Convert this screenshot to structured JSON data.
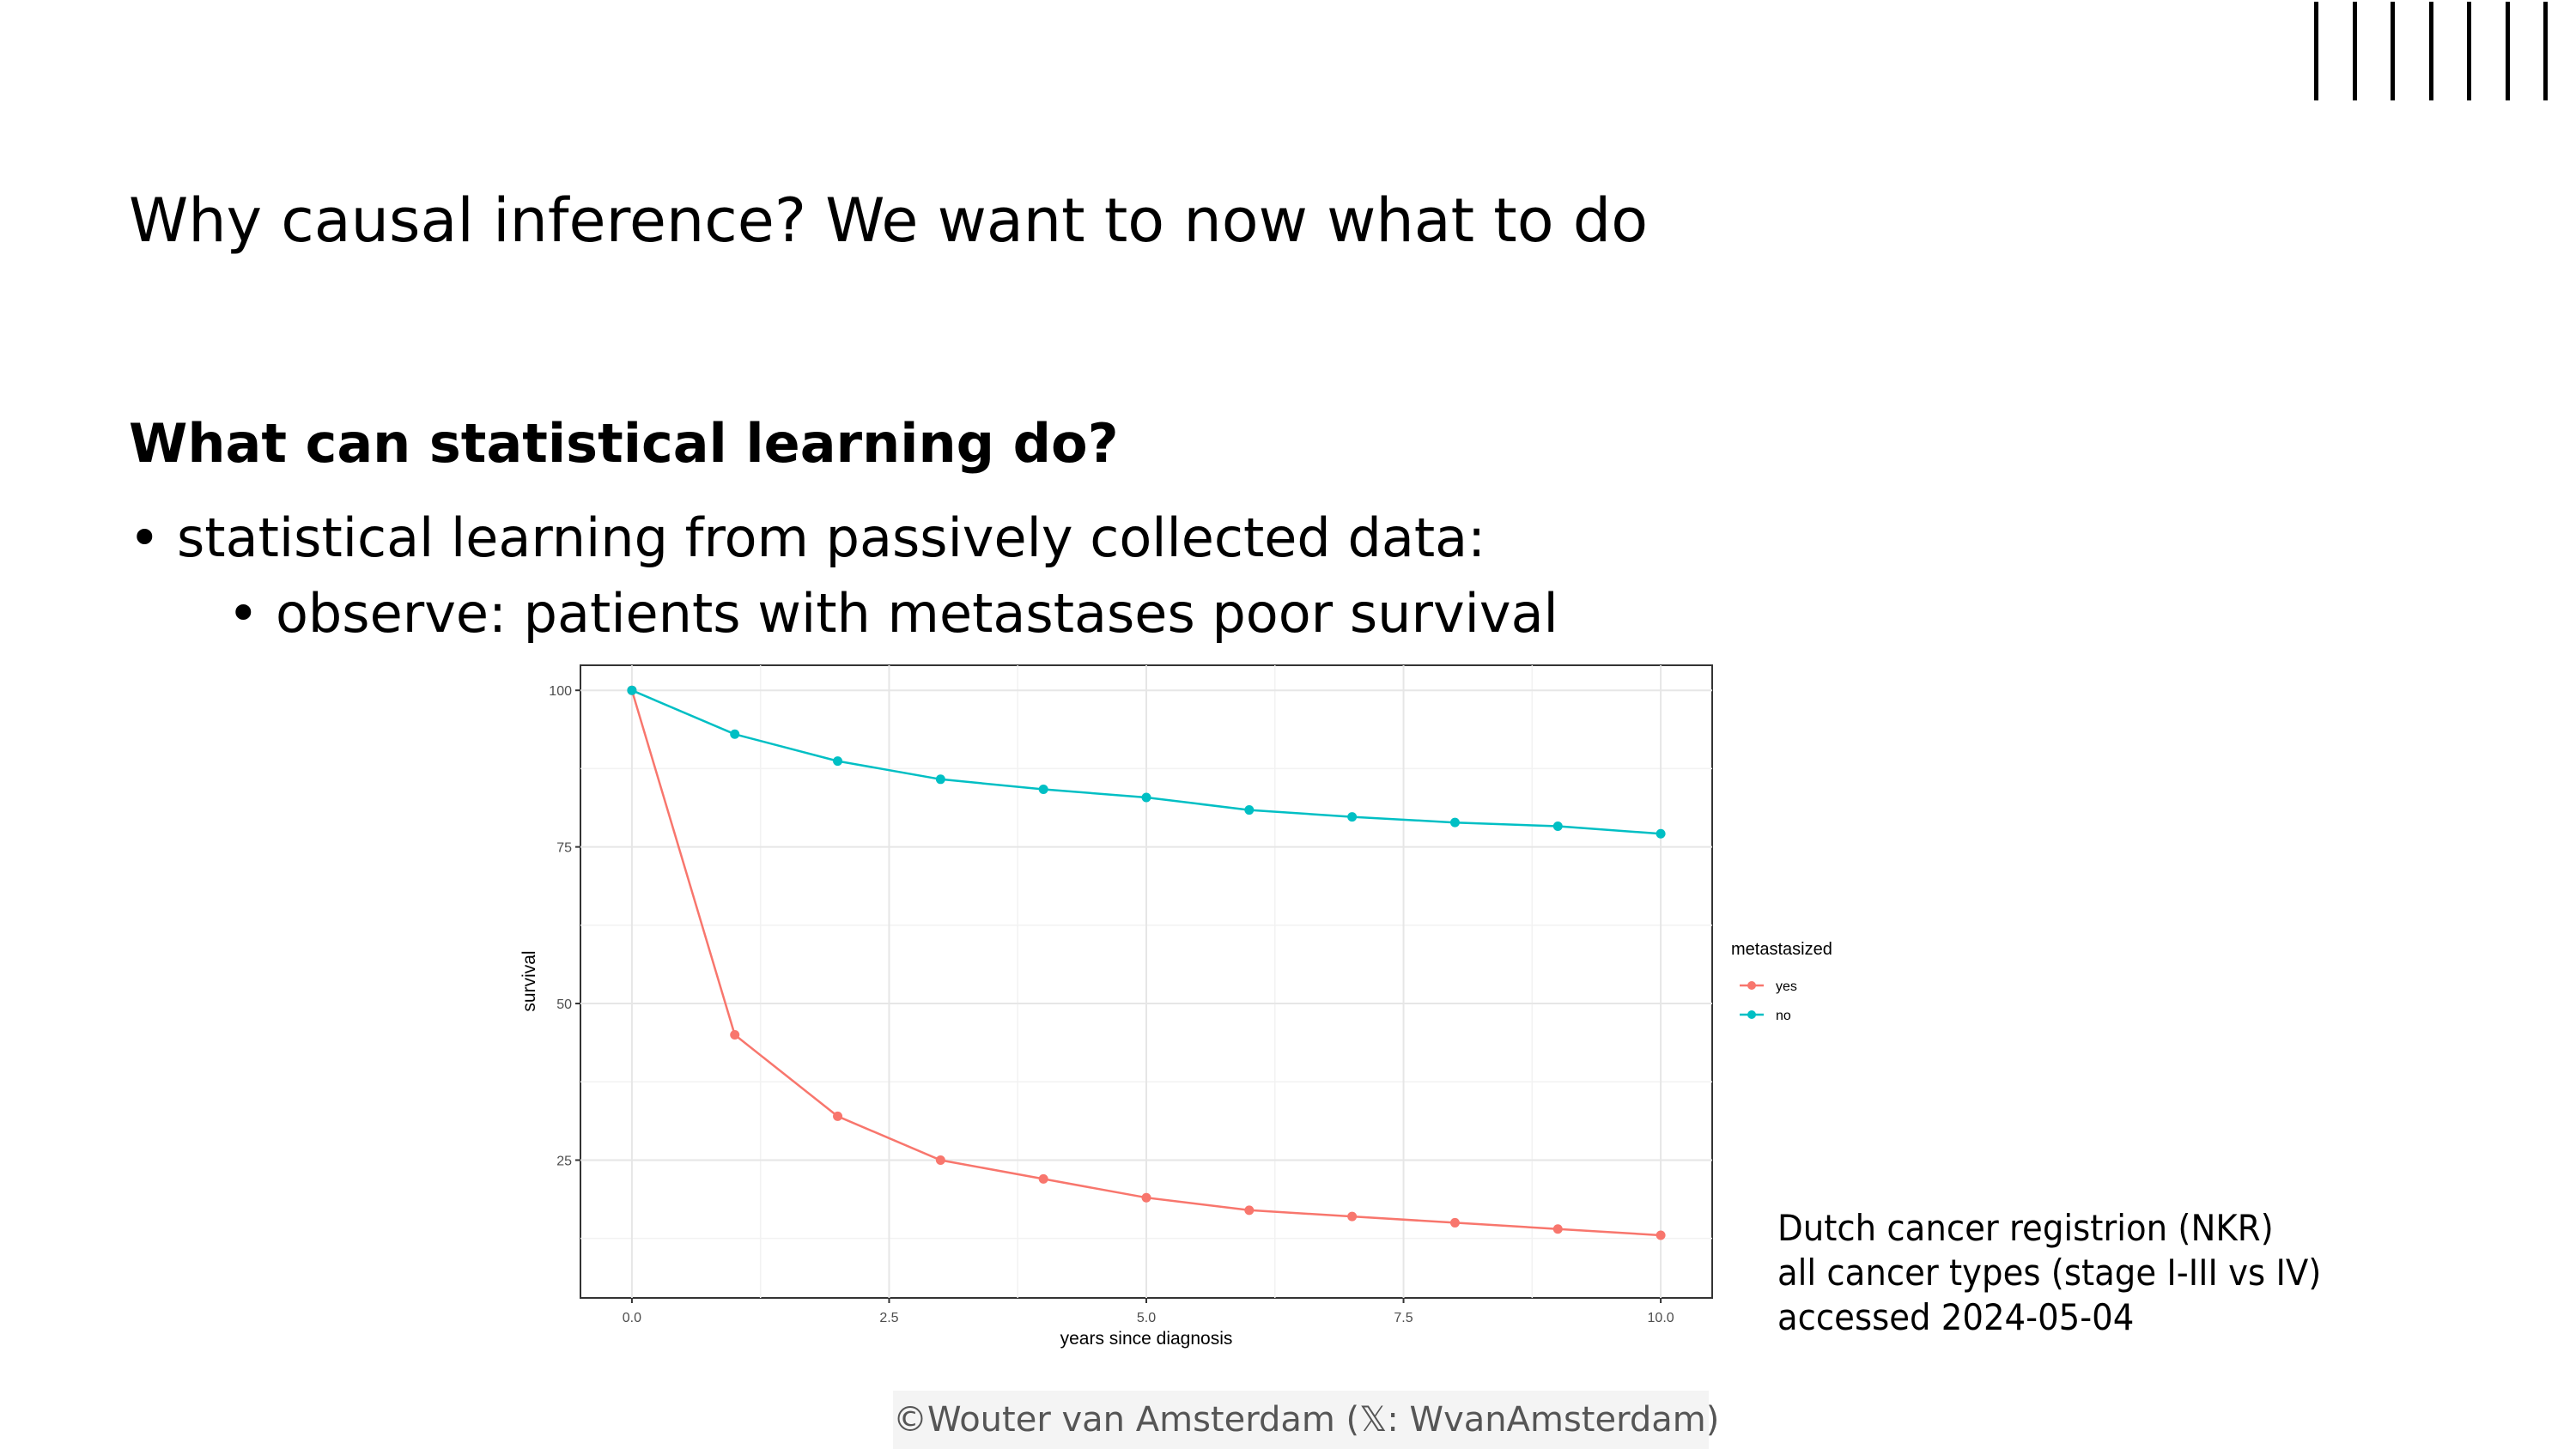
{
  "slide": {
    "title": "Why causal inference? We want to now what to do",
    "heading": "What can statistical learning do?",
    "bullet_1": "statistical learning from passively collected data:",
    "bullet_2": "observe: patients with metastases poor survival",
    "bullet_glyph": "•"
  },
  "source_note": [
    "Dutch cancer registrion (NKR)",
    "all cancer types (stage I-III vs IV)",
    "accessed 2024-05-04"
  ],
  "footer": {
    "text": "©Wouter van Amsterdam (𝕏: WvanAmsterdam)"
  },
  "decoration": {
    "bar_count": 8,
    "bar_color": "#000000"
  },
  "chart_data": {
    "type": "line",
    "title": "",
    "xlabel": "years since diagnosis",
    "ylabel": "survival",
    "xlim": [
      -0.5,
      10.5
    ],
    "ylim": [
      3,
      104
    ],
    "x_ticks": [
      0,
      2.5,
      5,
      7.5,
      10
    ],
    "x_tick_labels": [
      "0.0",
      "2.5",
      "5.0",
      "7.5",
      "10.0"
    ],
    "y_ticks": [
      25,
      50,
      75,
      100
    ],
    "y_tick_labels": [
      "25",
      "50",
      "75",
      "100"
    ],
    "grid": true,
    "legend": {
      "title": "metastasized",
      "placement": "right"
    },
    "x": [
      0,
      1,
      2,
      3,
      4,
      5,
      6,
      7,
      8,
      9,
      10
    ],
    "series": [
      {
        "name": "yes",
        "color": "#F8766D",
        "values": [
          100,
          45,
          32,
          25,
          22,
          19,
          17,
          16,
          15,
          14,
          13
        ]
      },
      {
        "name": "no",
        "color": "#00BFC4",
        "values": [
          100,
          93,
          88.7,
          85.8,
          84.2,
          82.9,
          80.9,
          79.8,
          78.9,
          78.3,
          77.1
        ]
      }
    ]
  }
}
